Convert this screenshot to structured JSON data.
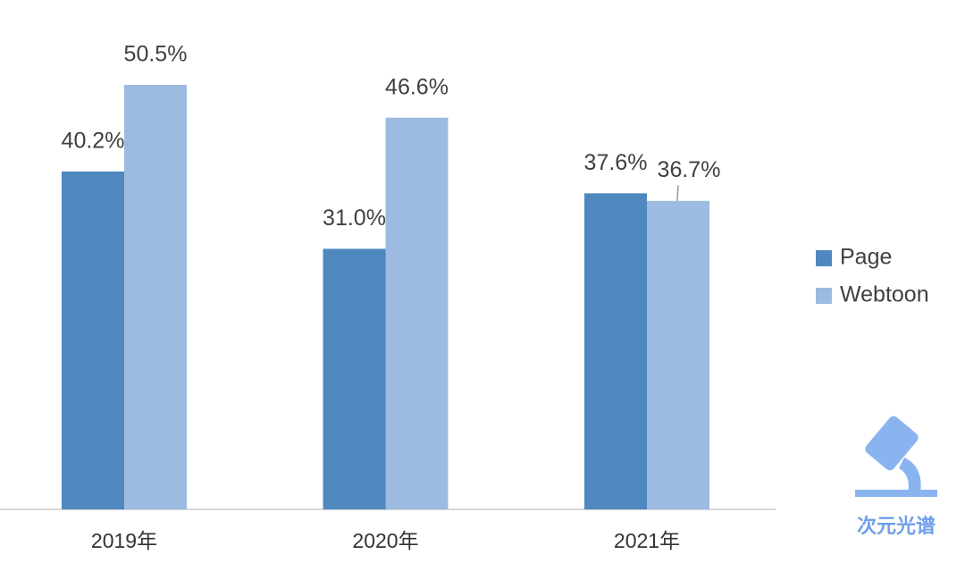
{
  "chart_data": {
    "type": "bar",
    "categories": [
      "2019年",
      "2020年",
      "2021年"
    ],
    "series": [
      {
        "name": "Page",
        "color": "#4f88bf",
        "values": [
          40.2,
          31.0,
          37.6
        ],
        "value_labels": [
          "40.2%",
          "31.0%",
          "37.6%"
        ]
      },
      {
        "name": "Webtoon",
        "color": "#9dbbe0",
        "values": [
          50.5,
          46.6,
          36.7
        ],
        "value_labels": [
          "50.5%",
          "46.6%",
          "36.7%"
        ]
      }
    ],
    "legend": "right"
  },
  "watermark": "次元光谱"
}
